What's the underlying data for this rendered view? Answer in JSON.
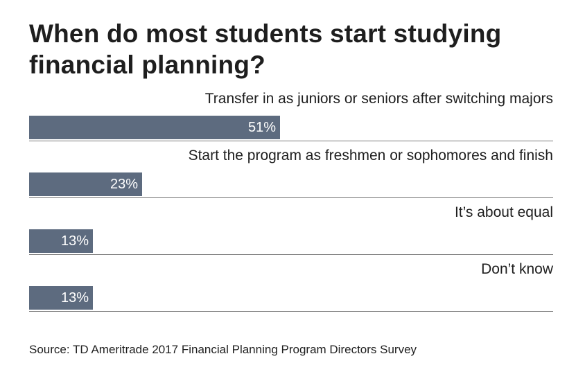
{
  "title": "When do most students start studying financial planning?",
  "source": "Source: TD Ameritrade 2017 Financial Planning Program Directors Survey",
  "colors": {
    "bar": "#5d6b7f",
    "value_text": "#ffffff",
    "divider": "#7a7a7a",
    "text": "#1e1e1e"
  },
  "chart_data": {
    "type": "bar",
    "orientation": "horizontal",
    "categories": [
      "Transfer in as juniors or seniors after switching majors",
      "Start the program as freshmen or sophomores and finish",
      "It’s about equal",
      "Don’t know"
    ],
    "values": [
      51,
      23,
      13,
      13
    ],
    "value_labels": [
      "51%",
      "23%",
      "13%",
      "13%"
    ],
    "unit": "%",
    "xlim": [
      0,
      100
    ],
    "grid": false,
    "legend": "none"
  }
}
